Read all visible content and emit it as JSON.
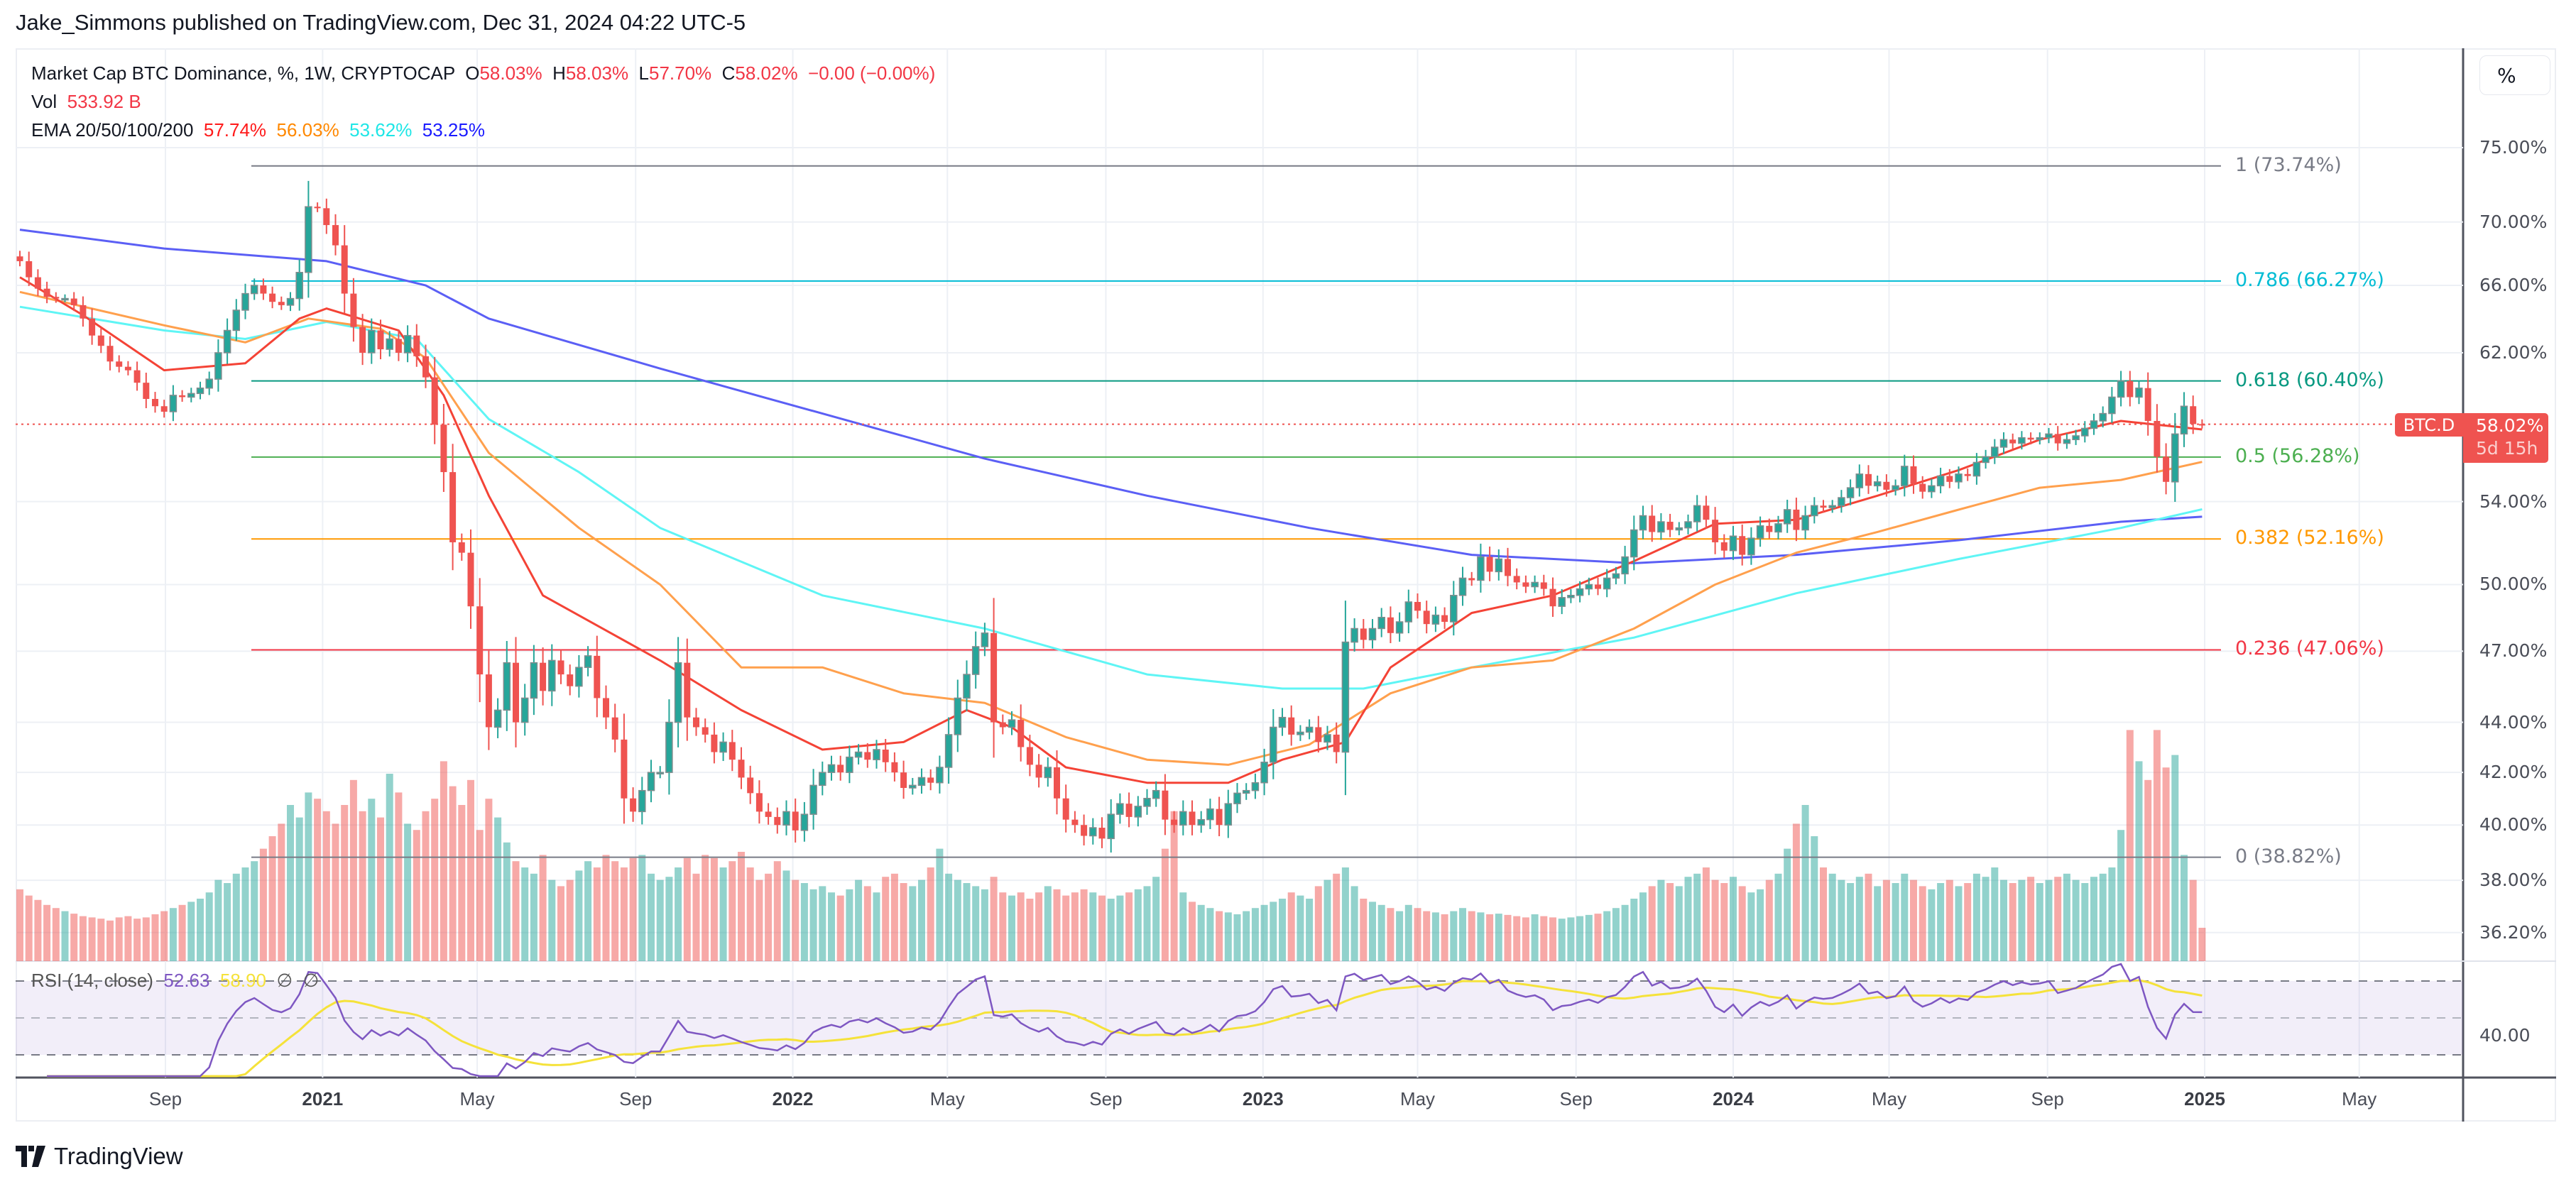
{
  "header": {
    "published": "Jake_Simmons published on TradingView.com, Dec 31, 2024 04:22 UTC-5"
  },
  "legend": {
    "symbol": "Market Cap BTC Dominance, %, 1W, CRYPTOCAP",
    "o_label": "O",
    "o": "58.03%",
    "h_label": "H",
    "h": "58.03%",
    "l_label": "L",
    "l": "57.70%",
    "c_label": "C",
    "c": "58.02%",
    "change": "−0.00 (−0.00%)",
    "vol_label": "Vol",
    "vol": "533.92 B",
    "ema_label": "EMA 20/50/100/200",
    "ema20": "57.74%",
    "ema50": "56.03%",
    "ema100": "53.62%",
    "ema200": "53.25%"
  },
  "rsi": {
    "label": "RSI (14, close)",
    "value": "52.63",
    "ma": "58.90",
    "na1": "∅",
    "na2": "∅",
    "level_label": "40.00"
  },
  "price_axis": {
    "unit_button": "%",
    "ticks": [
      "75.00%",
      "70.00%",
      "66.00%",
      "62.00%",
      "54.00%",
      "50.00%",
      "47.00%",
      "44.00%",
      "42.00%",
      "40.00%",
      "38.00%",
      "36.20%"
    ],
    "symbol_tag": "BTC.D",
    "last_price": "58.02%",
    "countdown": "5d 15h"
  },
  "time_axis": {
    "labels": [
      "Sep",
      "2021",
      "May",
      "Sep",
      "2022",
      "May",
      "Sep",
      "2023",
      "May",
      "Sep",
      "2024",
      "May",
      "Sep",
      "2025",
      "May"
    ]
  },
  "footer": {
    "logo": "TradingView"
  },
  "colors": {
    "up": "#26a69a",
    "down": "#ef5350",
    "ema20": "#f44336",
    "ema50": "#ffa04d",
    "ema100": "#5ff5f5",
    "ema200": "#5b5ff5",
    "ema20_text": "#ff1a1a",
    "ema50_text": "#ff8800",
    "ema100_text": "#1ee6e6",
    "ema200_text": "#1a1aff",
    "rsi": "#7e57c2",
    "rsi_ma": "#f5e23a"
  },
  "chart_data": {
    "type": "candlestick",
    "title": "Market Cap BTC Dominance, %, 1W, CRYPTOCAP",
    "interval": "1W",
    "start": "2020-05-11",
    "yscale": "log",
    "ylim": [
      35.5,
      78
    ],
    "grid": true,
    "ylabel": "%",
    "close": [
      67.5,
      66.5,
      65.8,
      65.3,
      65.2,
      65.2,
      64.8,
      64.0,
      63.0,
      62.4,
      61.5,
      61.2,
      61.0,
      60.3,
      59.4,
      59.0,
      58.7,
      59.6,
      59.5,
      59.7,
      60.0,
      60.5,
      62.0,
      63.3,
      64.5,
      65.5,
      66.0,
      65.5,
      65.0,
      64.8,
      65.2,
      66.8,
      71.0,
      70.9,
      69.8,
      68.5,
      65.5,
      63.5,
      62.0,
      63.3,
      62.2,
      62.8,
      62.0,
      63.0,
      61.8,
      60.6,
      58.0,
      55.5,
      52.0,
      51.5,
      49.0,
      46.0,
      43.8,
      44.5,
      46.5,
      44.0,
      45.0,
      46.5,
      45.3,
      46.6,
      46.0,
      45.5,
      46.3,
      46.8,
      45.0,
      44.2,
      43.3,
      41.0,
      40.5,
      41.3,
      42.0,
      42.0,
      44.0,
      46.5,
      44.2,
      43.8,
      43.5,
      42.8,
      43.2,
      42.5,
      41.8,
      41.2,
      40.5,
      40.3,
      40.0,
      40.5,
      39.8,
      40.4,
      41.5,
      42.0,
      42.3,
      42.0,
      42.6,
      42.8,
      42.5,
      42.9,
      42.4,
      42.0,
      41.4,
      41.5,
      41.8,
      41.6,
      42.2,
      43.5,
      45.0,
      46.0,
      47.2,
      47.8,
      44.0,
      43.8,
      44.1,
      43.0,
      42.3,
      41.8,
      42.2,
      41.0,
      40.2,
      40.0,
      39.6,
      39.9,
      39.5,
      40.4,
      40.8,
      40.3,
      40.7,
      41.0,
      41.3,
      40.2,
      40.0,
      40.5,
      40.0,
      40.2,
      40.6,
      40.0,
      40.8,
      41.2,
      41.3,
      41.6,
      42.4,
      43.8,
      44.2,
      43.5,
      43.6,
      43.8,
      43.2,
      43.5,
      42.8,
      47.4,
      48.0,
      47.5,
      48.0,
      48.5,
      47.8,
      48.3,
      49.2,
      48.8,
      48.2,
      48.6,
      48.3,
      49.5,
      50.3,
      50.2,
      51.3,
      50.6,
      51.2,
      50.4,
      50.1,
      49.9,
      50.1,
      49.8,
      49.0,
      49.4,
      49.5,
      49.8,
      50.0,
      49.8,
      50.3,
      50.5,
      51.3,
      52.6,
      53.3,
      52.5,
      53.0,
      52.6,
      52.7,
      53.0,
      53.8,
      53.1,
      52.0,
      51.6,
      52.3,
      51.4,
      52.2,
      52.8,
      52.5,
      52.9,
      53.6,
      52.6,
      53.3,
      53.8,
      53.7,
      53.8,
      54.2,
      54.7,
      55.4,
      54.8,
      55.0,
      54.6,
      54.8,
      55.8,
      54.9,
      54.5,
      54.8,
      55.3,
      55.0,
      55.4,
      55.3,
      56.0,
      56.3,
      56.8,
      57.2,
      57.0,
      57.3,
      57.2,
      57.3,
      57.5,
      57.0,
      57.2,
      57.4,
      57.8,
      58.2,
      58.6,
      59.5,
      60.4,
      59.5,
      60.0,
      58.2,
      56.3,
      55.0,
      57.5,
      59.0,
      58.03,
      58.02
    ],
    "volume_billions": [
      1150,
      1050,
      980,
      900,
      850,
      800,
      760,
      720,
      700,
      680,
      650,
      700,
      720,
      680,
      700,
      750,
      800,
      850,
      900,
      950,
      1000,
      1100,
      1300,
      1250,
      1400,
      1500,
      1600,
      1800,
      2000,
      2200,
      2500,
      2300,
      2700,
      2600,
      2400,
      2200,
      2500,
      2900,
      2400,
      2600,
      2300,
      3000,
      2700,
      2200,
      2100,
      2400,
      2600,
      3200,
      2800,
      2500,
      2900,
      2100,
      2600,
      2300,
      1900,
      1600,
      1500,
      1400,
      1700,
      1300,
      1200,
      1300,
      1450,
      1600,
      1500,
      1700,
      1600,
      1500,
      1650,
      1700,
      1400,
      1300,
      1350,
      1500,
      1650,
      1400,
      1700,
      1650,
      1500,
      1600,
      1750,
      1500,
      1300,
      1400,
      1600,
      1450,
      1300,
      1250,
      1150,
      1200,
      1100,
      1050,
      1150,
      1300,
      1200,
      1100,
      1350,
      1400,
      1250,
      1200,
      1300,
      1500,
      1800,
      1400,
      1300,
      1250,
      1200,
      1150,
      1350,
      1100,
      1050,
      1100,
      1000,
      1100,
      1200,
      1150,
      1050,
      1100,
      1150,
      1100,
      1050,
      1000,
      1050,
      1100,
      1150,
      1200,
      1350,
      1800,
      2400,
      1100,
      950,
      900,
      850,
      800,
      780,
      750,
      800,
      850,
      900,
      950,
      1000,
      1100,
      1050,
      1000,
      1200,
      1300,
      1400,
      1500,
      1200,
      1000,
      950,
      900,
      850,
      800,
      900,
      850,
      800,
      780,
      750,
      800,
      850,
      800,
      780,
      750,
      760,
      740,
      720,
      700,
      750,
      720,
      700,
      680,
      700,
      720,
      740,
      760,
      800,
      850,
      900,
      1000,
      1100,
      1200,
      1300,
      1250,
      1200,
      1350,
      1400,
      1500,
      1300,
      1250,
      1350,
      1200,
      1100,
      1150,
      1300,
      1400,
      1800,
      2200,
      2500,
      2000,
      1500,
      1400,
      1300,
      1250,
      1350,
      1400,
      1200,
      1300,
      1250,
      1400,
      1300,
      1200,
      1150,
      1250,
      1300,
      1200,
      1250,
      1400,
      1350,
      1500,
      1300,
      1250,
      1300,
      1350,
      1250,
      1300,
      1350,
      1400,
      1300,
      1250,
      1350,
      1400,
      1500,
      2100,
      3700,
      3200,
      2900,
      3700,
      3100,
      3300,
      1700,
      1300,
      533.92
    ],
    "ema": {
      "ema20": [
        [
          "2020-05-11",
          66.5
        ],
        [
          "2020-06-29",
          64.2
        ],
        [
          "2020-08-31",
          61.0
        ],
        [
          "2020-11-02",
          61.4
        ],
        [
          "2020-12-14",
          64.0
        ],
        [
          "2021-01-04",
          64.6
        ],
        [
          "2021-03-01",
          63.3
        ],
        [
          "2021-04-05",
          59.6
        ],
        [
          "2021-05-10",
          54.3
        ],
        [
          "2021-06-21",
          49.5
        ],
        [
          "2021-09-20",
          46.6
        ],
        [
          "2021-11-22",
          44.5
        ],
        [
          "2022-01-24",
          42.9
        ],
        [
          "2022-03-28",
          43.2
        ],
        [
          "2022-05-16",
          44.5
        ],
        [
          "2022-06-20",
          43.8
        ],
        [
          "2022-08-01",
          42.2
        ],
        [
          "2022-10-03",
          41.6
        ],
        [
          "2022-12-05",
          41.6
        ],
        [
          "2023-01-16",
          42.5
        ],
        [
          "2023-03-06",
          43.2
        ],
        [
          "2023-04-10",
          46.3
        ],
        [
          "2023-06-12",
          48.7
        ],
        [
          "2023-08-14",
          49.5
        ],
        [
          "2023-10-16",
          51.1
        ],
        [
          "2023-12-18",
          52.9
        ],
        [
          "2024-02-19",
          53.1
        ],
        [
          "2024-04-22",
          54.3
        ],
        [
          "2024-06-24",
          55.6
        ],
        [
          "2024-08-26",
          57.2
        ],
        [
          "2024-10-28",
          58.2
        ],
        [
          "2024-12-30",
          57.74
        ]
      ],
      "ema50": [
        [
          "2020-05-11",
          65.6
        ],
        [
          "2020-08-31",
          63.6
        ],
        [
          "2020-11-02",
          62.6
        ],
        [
          "2020-12-21",
          64.0
        ],
        [
          "2021-02-15",
          63.4
        ],
        [
          "2021-03-22",
          61.7
        ],
        [
          "2021-05-10",
          56.5
        ],
        [
          "2021-07-19",
          52.7
        ],
        [
          "2021-09-20",
          50.0
        ],
        [
          "2021-11-22",
          46.3
        ],
        [
          "2022-01-24",
          46.3
        ],
        [
          "2022-03-28",
          45.2
        ],
        [
          "2022-05-30",
          44.8
        ],
        [
          "2022-08-01",
          43.4
        ],
        [
          "2022-10-03",
          42.5
        ],
        [
          "2022-12-05",
          42.3
        ],
        [
          "2023-02-06",
          43.1
        ],
        [
          "2023-04-10",
          45.2
        ],
        [
          "2023-06-12",
          46.3
        ],
        [
          "2023-08-14",
          46.6
        ],
        [
          "2023-10-16",
          48.0
        ],
        [
          "2023-12-18",
          50.0
        ],
        [
          "2024-02-19",
          51.5
        ],
        [
          "2024-04-22",
          52.5
        ],
        [
          "2024-06-24",
          53.6
        ],
        [
          "2024-08-26",
          54.7
        ],
        [
          "2024-10-28",
          55.1
        ],
        [
          "2024-12-30",
          56.03
        ]
      ],
      "ema100": [
        [
          "2020-05-11",
          64.7
        ],
        [
          "2020-08-31",
          63.3
        ],
        [
          "2020-11-02",
          62.8
        ],
        [
          "2021-01-04",
          63.8
        ],
        [
          "2021-03-15",
          62.8
        ],
        [
          "2021-05-10",
          58.3
        ],
        [
          "2021-07-19",
          55.5
        ],
        [
          "2021-09-20",
          52.7
        ],
        [
          "2022-01-24",
          49.5
        ],
        [
          "2022-05-30",
          48.0
        ],
        [
          "2022-10-03",
          46.0
        ],
        [
          "2023-01-16",
          45.4
        ],
        [
          "2023-03-20",
          45.4
        ],
        [
          "2023-06-12",
          46.3
        ],
        [
          "2023-10-16",
          47.6
        ],
        [
          "2024-02-19",
          49.6
        ],
        [
          "2024-06-24",
          51.2
        ],
        [
          "2024-10-28",
          52.7
        ],
        [
          "2024-12-30",
          53.62
        ]
      ],
      "ema200": [
        [
          "2020-05-11",
          69.5
        ],
        [
          "2020-08-31",
          68.3
        ],
        [
          "2021-01-04",
          67.5
        ],
        [
          "2021-03-22",
          66.0
        ],
        [
          "2021-05-10",
          64.0
        ],
        [
          "2021-09-20",
          61.1
        ],
        [
          "2022-01-24",
          58.6
        ],
        [
          "2022-05-30",
          56.2
        ],
        [
          "2022-10-03",
          54.3
        ],
        [
          "2023-02-06",
          52.7
        ],
        [
          "2023-06-12",
          51.4
        ],
        [
          "2023-10-16",
          51.0
        ],
        [
          "2024-02-19",
          51.4
        ],
        [
          "2024-06-24",
          52.1
        ],
        [
          "2024-10-28",
          53.0
        ],
        [
          "2024-12-30",
          53.25
        ]
      ]
    },
    "fib_levels": [
      {
        "label": "1 (73.74%)",
        "value": 73.74,
        "color": "#787b86"
      },
      {
        "label": "0.786 (66.27%)",
        "value": 66.27,
        "color": "#00bcd4"
      },
      {
        "label": "0.618 (60.40%)",
        "value": 60.4,
        "color": "#089981"
      },
      {
        "label": "0.5 (56.28%)",
        "value": 56.28,
        "color": "#4caf50"
      },
      {
        "label": "0.382 (52.16%)",
        "value": 52.16,
        "color": "#ff9800"
      },
      {
        "label": "0.236 (47.06%)",
        "value": 47.06,
        "color": "#f23645"
      },
      {
        "label": "0 (38.82%)",
        "value": 38.82,
        "color": "#787b86"
      }
    ],
    "rsi": {
      "period": 14,
      "ma_period": 14,
      "bands": [
        70,
        50,
        30
      ]
    }
  }
}
